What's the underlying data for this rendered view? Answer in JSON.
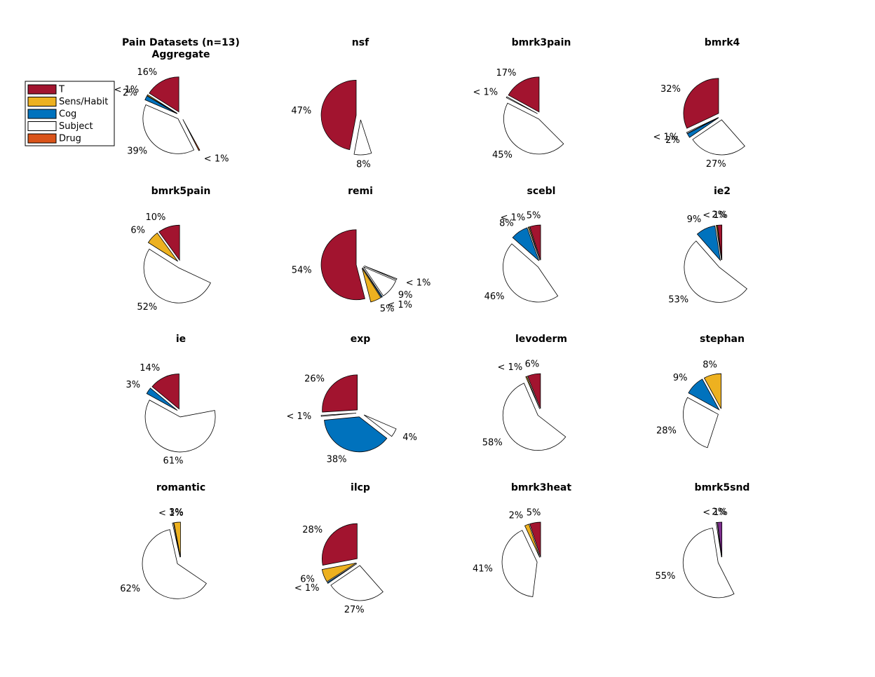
{
  "legend": {
    "entries": [
      {
        "label": "T",
        "color": "#A2142F"
      },
      {
        "label": "Sens/Habit",
        "color": "#EDB120"
      },
      {
        "label": "Cog",
        "color": "#0072BD"
      },
      {
        "label": "Subject",
        "color": "#FFFFFF"
      },
      {
        "label": "Drug",
        "color": "#D95319"
      }
    ]
  },
  "chart_data": [
    {
      "type": "pie",
      "title": [
        "Pain Datasets (n=13)",
        "Aggregate"
      ],
      "slices": [
        {
          "label": "16%",
          "value": 16,
          "color": "#A2142F"
        },
        {
          "label": "< 1%",
          "value": 0.5,
          "color": "#EDB120"
        },
        {
          "label": "2%",
          "value": 2,
          "color": "#0072BD"
        },
        {
          "label": "39%",
          "value": 39,
          "color": "#FFFFFF"
        },
        {
          "label": "< 1%",
          "value": 0.5,
          "color": "#D95319"
        }
      ]
    },
    {
      "type": "pie",
      "title": [
        "nsf"
      ],
      "slices": [
        {
          "label": "47%",
          "value": 47,
          "color": "#A2142F"
        },
        {
          "label": "8%",
          "value": 8,
          "color": "#FFFFFF"
        }
      ]
    },
    {
      "type": "pie",
      "title": [
        "bmrk3pain"
      ],
      "slices": [
        {
          "label": "17%",
          "value": 17,
          "color": "#A2142F"
        },
        {
          "label": "< 1%",
          "value": 0.5,
          "color": "#FFFFFF"
        },
        {
          "label": "45%",
          "value": 45,
          "color": "#FFFFFF"
        }
      ]
    },
    {
      "type": "pie",
      "title": [
        "bmrk4"
      ],
      "slices": [
        {
          "label": "32%",
          "value": 32,
          "color": "#A2142F"
        },
        {
          "label": "< 1%",
          "value": 0.5,
          "color": "#FFFFFF"
        },
        {
          "label": "2%",
          "value": 2,
          "color": "#0072BD"
        },
        {
          "label": "27%",
          "value": 27,
          "color": "#FFFFFF"
        }
      ]
    },
    {
      "type": "pie",
      "title": [
        "bmrk5pain"
      ],
      "slices": [
        {
          "label": "10%",
          "value": 10,
          "color": "#A2142F"
        },
        {
          "label": "6%",
          "value": 6,
          "color": "#EDB120"
        },
        {
          "label": "52%",
          "value": 52,
          "color": "#FFFFFF"
        }
      ]
    },
    {
      "type": "pie",
      "title": [
        "remi"
      ],
      "slices": [
        {
          "label": "54%",
          "value": 54,
          "color": "#A2142F"
        },
        {
          "label": "5%",
          "value": 5,
          "color": "#EDB120"
        },
        {
          "label": "< 1%",
          "value": 0.5,
          "color": "#0072BD"
        },
        {
          "label": "9%",
          "value": 9,
          "color": "#FFFFFF"
        },
        {
          "label": "< 1%",
          "value": 0.5,
          "color": "#FFFFFF"
        }
      ]
    },
    {
      "type": "pie",
      "title": [
        "scebl"
      ],
      "slices": [
        {
          "label": "5%",
          "value": 5,
          "color": "#A2142F"
        },
        {
          "label": "< 1%",
          "value": 0.5,
          "color": "#EDB120"
        },
        {
          "label": "8%",
          "value": 8,
          "color": "#0072BD"
        },
        {
          "label": "46%",
          "value": 46,
          "color": "#FFFFFF"
        }
      ]
    },
    {
      "type": "pie",
      "title": [
        "ie2"
      ],
      "slices": [
        {
          "label": "2%",
          "value": 2,
          "color": "#A2142F"
        },
        {
          "label": "< 1%",
          "value": 0.5,
          "color": "#EDB120"
        },
        {
          "label": "9%",
          "value": 9,
          "color": "#0072BD"
        },
        {
          "label": "53%",
          "value": 53,
          "color": "#FFFFFF"
        }
      ]
    },
    {
      "type": "pie",
      "title": [
        "ie"
      ],
      "slices": [
        {
          "label": "14%",
          "value": 14,
          "color": "#A2142F"
        },
        {
          "label": "3%",
          "value": 3,
          "color": "#0072BD"
        },
        {
          "label": "61%",
          "value": 61,
          "color": "#FFFFFF"
        }
      ]
    },
    {
      "type": "pie",
      "title": [
        "exp"
      ],
      "slices": [
        {
          "label": "26%",
          "value": 26,
          "color": "#A2142F"
        },
        {
          "label": "< 1%",
          "value": 0.5,
          "color": "#FFFFFF"
        },
        {
          "label": "38%",
          "value": 38,
          "color": "#0072BD"
        },
        {
          "label": "4%",
          "value": 4,
          "color": "#FFFFFF"
        }
      ]
    },
    {
      "type": "pie",
      "title": [
        "levoderm"
      ],
      "slices": [
        {
          "label": "6%",
          "value": 6,
          "color": "#A2142F"
        },
        {
          "label": "< 1%",
          "value": 0.5,
          "color": "#EDB120"
        },
        {
          "label": "58%",
          "value": 58,
          "color": "#FFFFFF"
        }
      ]
    },
    {
      "type": "pie",
      "title": [
        "stephan"
      ],
      "slices": [
        {
          "label": "8%",
          "value": 8,
          "color": "#EDB120"
        },
        {
          "label": "9%",
          "value": 9,
          "color": "#0072BD"
        },
        {
          "label": "28%",
          "value": 28,
          "color": "#FFFFFF"
        }
      ]
    },
    {
      "type": "pie",
      "title": [
        "romantic"
      ],
      "slices": [
        {
          "label": "3%",
          "value": 3,
          "color": "#EDB120"
        },
        {
          "label": "< 1%",
          "value": 0.5,
          "color": "#FFFFFF"
        },
        {
          "label": "62%",
          "value": 62,
          "color": "#FFFFFF"
        }
      ]
    },
    {
      "type": "pie",
      "title": [
        "ilcp"
      ],
      "slices": [
        {
          "label": "28%",
          "value": 28,
          "color": "#A2142F"
        },
        {
          "label": "6%",
          "value": 6,
          "color": "#EDB120"
        },
        {
          "label": "< 1%",
          "value": 0.5,
          "color": "#0072BD"
        },
        {
          "label": "27%",
          "value": 27,
          "color": "#FFFFFF"
        }
      ]
    },
    {
      "type": "pie",
      "title": [
        "bmrk3heat"
      ],
      "slices": [
        {
          "label": "5%",
          "value": 5,
          "color": "#A2142F"
        },
        {
          "label": "2%",
          "value": 2,
          "color": "#EDB120"
        },
        {
          "label": "41%",
          "value": 41,
          "color": "#FFFFFF"
        }
      ]
    },
    {
      "type": "pie",
      "title": [
        "bmrk5snd"
      ],
      "slices": [
        {
          "label": "2%",
          "value": 2,
          "color": "#7E2F8E"
        },
        {
          "label": "< 1%",
          "value": 0.5,
          "color": "#FFFFFF"
        },
        {
          "label": "55%",
          "value": 55,
          "color": "#FFFFFF"
        }
      ]
    }
  ]
}
